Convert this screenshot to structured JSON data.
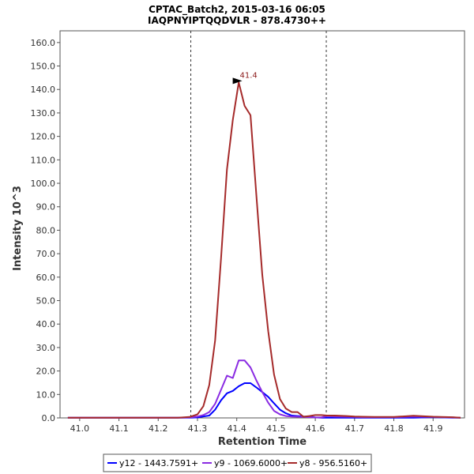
{
  "chart_data": {
    "type": "line",
    "title": "CPTAC_Batch2, 2015-03-16 06:05",
    "subtitle": "IAQPNYIPTQQDVLR - 878.4730++",
    "xlabel": "Retention Time",
    "ylabel": "Intensity 10^3",
    "xlim": [
      40.95,
      41.98
    ],
    "ylim": [
      0,
      165
    ],
    "x_ticks": [
      "41.0",
      "41.1",
      "41.2",
      "41.3",
      "41.4",
      "41.5",
      "41.6",
      "41.7",
      "41.8",
      "41.9"
    ],
    "y_ticks": [
      "0.0",
      "10.0",
      "20.0",
      "30.0",
      "40.0",
      "50.0",
      "60.0",
      "70.0",
      "80.0",
      "90.0",
      "100.0",
      "110.0",
      "120.0",
      "130.0",
      "140.0",
      "150.0",
      "160.0"
    ],
    "boundaries": [
      41.283,
      41.628
    ],
    "peak_annotation": {
      "label": "41.4",
      "x": 41.43,
      "y": 143.0,
      "color": "#8b1a1a"
    },
    "series": [
      {
        "name": "y12 - 1443.7591+",
        "color": "#0000ff",
        "x": [
          40.97,
          41.0,
          41.05,
          41.1,
          41.15,
          41.2,
          41.25,
          41.28,
          41.3,
          41.315,
          41.33,
          41.345,
          41.36,
          41.375,
          41.39,
          41.405,
          41.42,
          41.435,
          41.45,
          41.465,
          41.48,
          41.495,
          41.51,
          41.525,
          41.54,
          41.555,
          41.57,
          41.585,
          41.6,
          41.615,
          41.63,
          41.65,
          41.68,
          41.7,
          41.72,
          41.75,
          41.8,
          41.85,
          41.9,
          41.95,
          41.97
        ],
        "values": [
          0.1,
          0.1,
          0.1,
          0.1,
          0.1,
          0.1,
          0.1,
          0.1,
          0.2,
          0.6,
          1.0,
          3.5,
          7.5,
          10.5,
          11.5,
          13.5,
          14.8,
          14.8,
          13.0,
          11.0,
          9.0,
          6.2,
          3.5,
          2.0,
          1.0,
          0.8,
          0.6,
          0.5,
          0.2,
          0.1,
          0.1,
          0.1,
          0.1,
          0.1,
          0.1,
          0.1,
          0.1,
          0.1,
          0.3,
          0.1,
          0.1
        ]
      },
      {
        "name": "y9 - 1069.6000+",
        "color": "#8a2be2",
        "x": [
          40.97,
          41.0,
          41.05,
          41.1,
          41.15,
          41.2,
          41.25,
          41.28,
          41.3,
          41.315,
          41.33,
          41.345,
          41.36,
          41.375,
          41.39,
          41.405,
          41.42,
          41.435,
          41.45,
          41.465,
          41.48,
          41.495,
          41.51,
          41.525,
          41.54,
          41.555,
          41.57,
          41.585,
          41.6,
          41.615,
          41.63,
          41.65,
          41.68,
          41.7,
          41.72,
          41.75,
          41.8,
          41.85,
          41.9,
          41.95,
          41.97
        ],
        "values": [
          0.1,
          0.1,
          0.1,
          0.1,
          0.1,
          0.1,
          0.1,
          0.2,
          0.6,
          1.2,
          2.5,
          6.0,
          12.0,
          18.0,
          17.0,
          24.5,
          24.5,
          21.5,
          16.0,
          11.0,
          6.5,
          3.0,
          1.5,
          0.8,
          0.6,
          0.5,
          0.4,
          0.3,
          0.2,
          0.2,
          0.8,
          0.6,
          0.5,
          0.4,
          0.3,
          0.3,
          0.3,
          0.6,
          0.4,
          0.2,
          0.1
        ]
      },
      {
        "name": "y8 - 956.5160+",
        "color": "#a52a2a",
        "x": [
          40.97,
          41.0,
          41.05,
          41.1,
          41.15,
          41.2,
          41.25,
          41.28,
          41.3,
          41.315,
          41.33,
          41.345,
          41.36,
          41.375,
          41.39,
          41.405,
          41.42,
          41.435,
          41.45,
          41.465,
          41.48,
          41.495,
          41.51,
          41.525,
          41.54,
          41.555,
          41.57,
          41.585,
          41.6,
          41.615,
          41.63,
          41.65,
          41.68,
          41.7,
          41.72,
          41.75,
          41.8,
          41.85,
          41.9,
          41.95,
          41.97
        ],
        "values": [
          0.1,
          0.1,
          0.1,
          0.1,
          0.1,
          0.1,
          0.1,
          0.4,
          1.5,
          5.0,
          14.0,
          33.0,
          68.0,
          106.0,
          127.0,
          143.0,
          133.0,
          129.0,
          95.0,
          61.0,
          37.0,
          18.5,
          8.0,
          4.0,
          2.5,
          2.5,
          0.5,
          0.8,
          1.2,
          1.2,
          1.0,
          1.0,
          0.8,
          0.6,
          0.5,
          0.4,
          0.4,
          0.9,
          0.5,
          0.3,
          0.1
        ]
      }
    ]
  }
}
